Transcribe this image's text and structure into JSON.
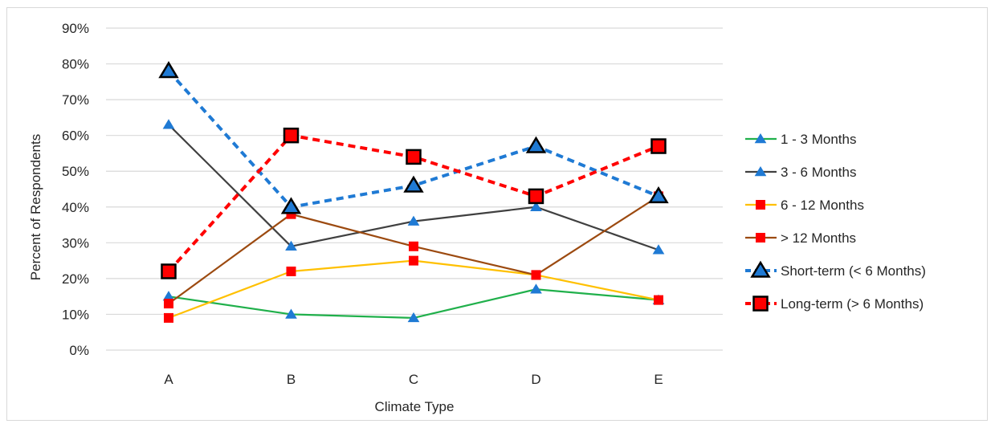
{
  "chart_data": {
    "type": "line",
    "title": "",
    "xlabel": "Climate Type",
    "ylabel": "Percent of Respondents",
    "categories": [
      "A",
      "B",
      "C",
      "D",
      "E"
    ],
    "ylim": [
      0,
      90
    ],
    "yticks": [
      "0%",
      "10%",
      "20%",
      "30%",
      "40%",
      "50%",
      "60%",
      "70%",
      "80%",
      "90%"
    ],
    "grid": true,
    "legend_position": "right",
    "series": [
      {
        "name": "1 - 3 Months",
        "values": [
          15,
          10,
          9,
          17,
          14
        ],
        "color": "#20b04b",
        "marker": "triangle",
        "dash": false
      },
      {
        "name": "3 - 6 Months",
        "values": [
          63,
          29,
          36,
          40,
          28
        ],
        "color": "#404040",
        "marker": "triangle",
        "dash": false
      },
      {
        "name": "6 - 12 Months",
        "values": [
          9,
          22,
          25,
          21,
          14
        ],
        "color": "#ffc000",
        "marker": "square",
        "dash": false
      },
      {
        "name": "> 12 Months",
        "values": [
          13,
          38,
          29,
          21,
          43
        ],
        "color": "#9c4a10",
        "marker": "square",
        "dash": false
      },
      {
        "name": "Short-term (< 6 Months)",
        "values": [
          78,
          40,
          46,
          57,
          43
        ],
        "color": "#1f7ad4",
        "marker": "triangle",
        "dash": true
      },
      {
        "name": "Long-term (> 6 Months)",
        "values": [
          22,
          60,
          54,
          43,
          57
        ],
        "color": "#ff0000",
        "marker": "square",
        "dash": true
      }
    ],
    "marker_colors": {
      "triangle": "#1f7ad4",
      "square": "#ff0000"
    }
  }
}
